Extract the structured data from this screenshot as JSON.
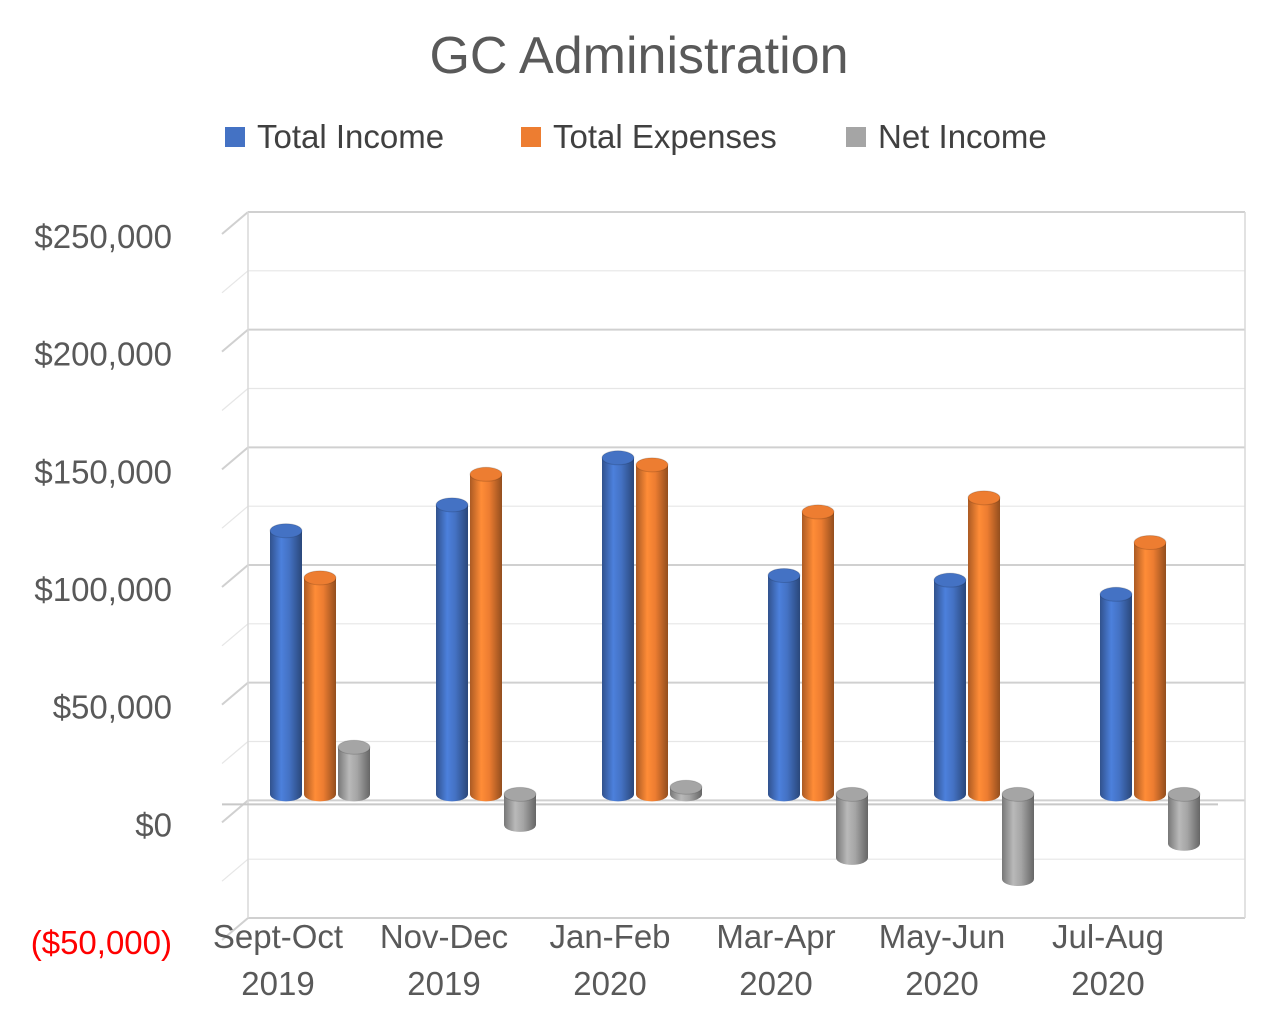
{
  "chart_data": {
    "type": "bar",
    "style": "3d-cylinder",
    "title": "GC Administration",
    "categories": [
      [
        "Sept-Oct",
        "2019"
      ],
      [
        "Nov-Dec",
        "2019"
      ],
      [
        "Jan-Feb",
        "2020"
      ],
      [
        "Mar-Apr",
        "2020"
      ],
      [
        "May-Jun",
        "2020"
      ],
      [
        "Jul-Aug",
        "2020"
      ]
    ],
    "series": [
      {
        "name": "Total Income",
        "color": "#4472c4",
        "values": [
          112000,
          123000,
          143000,
          93000,
          91000,
          85000
        ]
      },
      {
        "name": "Total Expenses",
        "color": "#ed7d31",
        "values": [
          92000,
          136000,
          140000,
          120000,
          126000,
          107000
        ]
      },
      {
        "name": "Net Income",
        "color": "#a5a5a5",
        "values": [
          20000,
          -13000,
          3000,
          -27000,
          -36000,
          -21000
        ]
      }
    ],
    "ylim": [
      -50000,
      250000
    ],
    "yticks": [
      {
        "value": 250000,
        "label": "$250,000"
      },
      {
        "value": 200000,
        "label": "$200,000"
      },
      {
        "value": 150000,
        "label": "$150,000"
      },
      {
        "value": 100000,
        "label": "$100,000"
      },
      {
        "value": 50000,
        "label": "$50,000"
      },
      {
        "value": 0,
        "label": "$0"
      },
      {
        "value": -50000,
        "label": "($50,000)"
      }
    ],
    "negative_label_color": "#ff0000",
    "xlabel": "",
    "ylabel": "",
    "legend_position": "top",
    "grid": true
  }
}
